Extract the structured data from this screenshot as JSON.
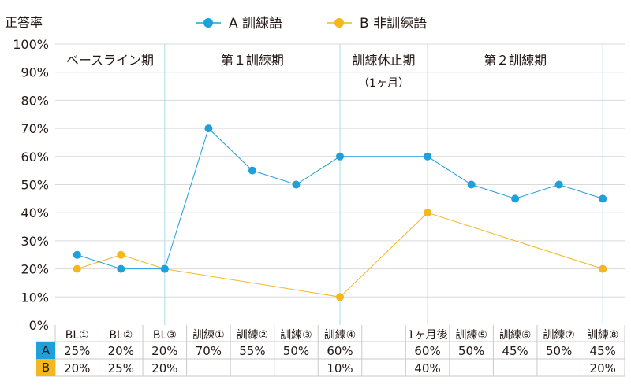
{
  "chart_data": {
    "type": "line",
    "ylabel": "正答率",
    "yticks": [
      "0%",
      "10%",
      "20%",
      "30%",
      "40%",
      "50%",
      "60%",
      "70%",
      "80%",
      "90%",
      "100%"
    ],
    "ylim": [
      0,
      100
    ],
    "categories": [
      "BL①",
      "BL②",
      "BL③",
      "訓練①",
      "訓練②",
      "訓練③",
      "訓練④",
      "",
      "1ヶ月後",
      "訓練⑤",
      "訓練⑥",
      "訓練⑦",
      "訓練⑧"
    ],
    "series": [
      {
        "name": "A 訓練語",
        "key": "A",
        "color": "#1fa0d8",
        "values": [
          25,
          20,
          20,
          70,
          55,
          50,
          60,
          null,
          60,
          50,
          45,
          50,
          45
        ],
        "labels": [
          "25%",
          "20%",
          "20%",
          "70%",
          "55%",
          "50%",
          "60%",
          "",
          "60%",
          "50%",
          "45%",
          "50%",
          "45%"
        ]
      },
      {
        "name": "B 非訓練語",
        "key": "B",
        "color": "#f4b71f",
        "values": [
          20,
          25,
          20,
          null,
          null,
          null,
          10,
          null,
          40,
          null,
          null,
          null,
          20
        ],
        "labels": [
          "20%",
          "25%",
          "20%",
          "",
          "",
          "",
          "10%",
          "",
          "40%",
          "",
          "",
          "",
          "20%"
        ]
      }
    ],
    "phases": [
      {
        "label": "ベースライン期",
        "sub": ""
      },
      {
        "label": "第１訓練期",
        "sub": ""
      },
      {
        "label": "訓練休止期",
        "sub": "（1ヶ月）"
      },
      {
        "label": "第２訓練期",
        "sub": ""
      }
    ],
    "grid": true,
    "legend": "top"
  }
}
